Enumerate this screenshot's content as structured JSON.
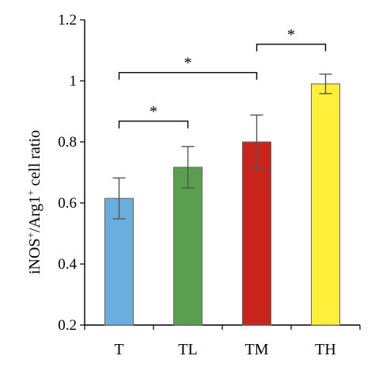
{
  "chart_data": {
    "type": "bar",
    "title": "",
    "xlabel": "",
    "ylabel": {
      "prefix": "iNOS",
      "sup1": "+",
      "middle": "/Arg1",
      "sup2": "+",
      "suffix": " cell ratio"
    },
    "ylim": [
      0.2,
      1.2
    ],
    "yticks": [
      {
        "value": 0.2,
        "label": "0.2"
      },
      {
        "value": 0.4,
        "label": "0.4"
      },
      {
        "value": 0.6,
        "label": "0.6"
      },
      {
        "value": 0.8,
        "label": "0.8"
      },
      {
        "value": 1.0,
        "label": "1"
      },
      {
        "value": 1.2,
        "label": "1.2"
      }
    ],
    "grid": false,
    "categories": [
      "T",
      "TL",
      "TM",
      "TH"
    ],
    "values": [
      0.615,
      0.717,
      0.8,
      0.99
    ],
    "errors": [
      0.067,
      0.068,
      0.088,
      0.032
    ],
    "colors": [
      "#6aaee0",
      "#5a9e50",
      "#c8241c",
      "#ffef3a"
    ],
    "significance": [
      {
        "from": 0,
        "to": 1,
        "y": 0.868,
        "label": "*"
      },
      {
        "from": 0,
        "to": 2,
        "y": 1.027,
        "label": "*"
      },
      {
        "from": 2,
        "to": 3,
        "y": 1.12,
        "label": "*"
      }
    ]
  }
}
